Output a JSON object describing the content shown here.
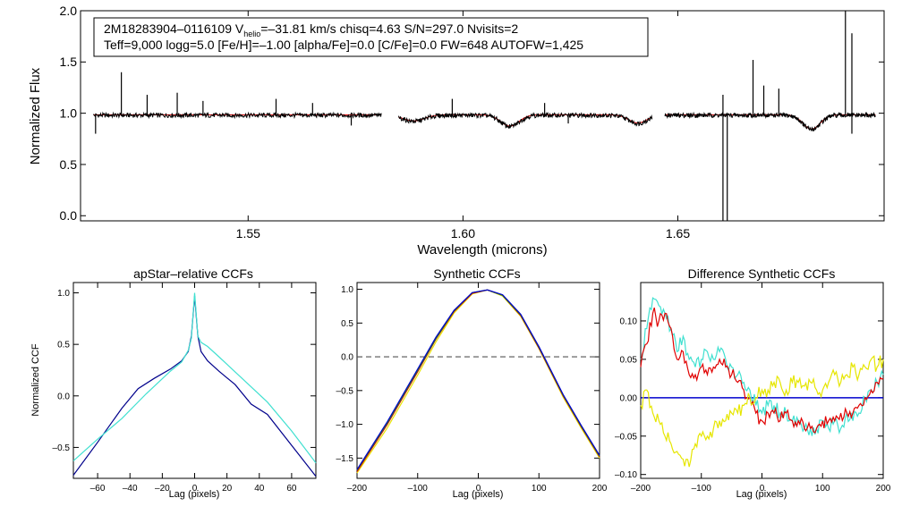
{
  "figure": {
    "info_line1_prefix": "2M18283904–0116109  V",
    "info_line1_sub": "helio",
    "info_line1_suffix": "=–31.81 km/s  chisq=4.63  S/N=297.0  Nvisits=2",
    "info_line2": "Teff=9,000 logg=5.0 [Fe/H]=–1.00 [alpha/Fe]=0.0 [C/Fe]=0.0 FW=648 AUTOFW=1,425"
  },
  "colors": {
    "observed": "#000000",
    "model": "#e00000",
    "ccf_dark": "#00008b",
    "ccf_cyan": "#40e0d0",
    "ccf_red": "#e00000",
    "ccf_yellow": "#e6e600",
    "ccf_blue": "#0000cd",
    "ccf_green": "#228b22",
    "zero_line_dash": "#555555",
    "zero_line_blue": "#0000cd"
  },
  "chart_data": [
    {
      "id": "spectrum",
      "type": "line",
      "title": "",
      "xlabel": "Wavelength (microns)",
      "ylabel": "Normalized Flux",
      "xlim": [
        1.511,
        1.698
      ],
      "ylim": [
        -0.05,
        2.0
      ],
      "xticks": [
        {
          "v": 1.55,
          "label": "1.55"
        },
        {
          "v": 1.6,
          "label": "1.60"
        },
        {
          "v": 1.65,
          "label": "1.65"
        }
      ],
      "yticks": [
        {
          "v": 0.0,
          "label": "0.0"
        },
        {
          "v": 0.5,
          "label": "0.5"
        },
        {
          "v": 1.0,
          "label": "1.0"
        },
        {
          "v": 1.5,
          "label": "1.5"
        },
        {
          "v": 2.0,
          "label": "2.0"
        }
      ],
      "chips": [
        [
          1.514,
          1.581
        ],
        [
          1.585,
          1.644
        ],
        [
          1.647,
          1.696
        ]
      ],
      "continuum": 0.98,
      "broad_lines": [
        {
          "center": 1.5885,
          "depth": 0.06,
          "width": 0.0035
        },
        {
          "center": 1.6109,
          "depth": 0.11,
          "width": 0.003
        },
        {
          "center": 1.6407,
          "depth": 0.08,
          "width": 0.003
        },
        {
          "center": 1.6811,
          "depth": 0.14,
          "width": 0.0028
        }
      ],
      "emission_spikes": [
        {
          "x": 1.5205,
          "y": 1.4
        },
        {
          "x": 1.5265,
          "y": 1.18
        },
        {
          "x": 1.5335,
          "y": 1.2
        },
        {
          "x": 1.5395,
          "y": 1.12
        },
        {
          "x": 1.5565,
          "y": 1.14
        },
        {
          "x": 1.565,
          "y": 1.1
        },
        {
          "x": 1.5975,
          "y": 1.14
        },
        {
          "x": 1.619,
          "y": 1.1
        },
        {
          "x": 1.6605,
          "y": 1.18
        },
        {
          "x": 1.6675,
          "y": 1.52
        },
        {
          "x": 1.67,
          "y": 1.27
        },
        {
          "x": 1.6735,
          "y": 1.24
        },
        {
          "x": 1.689,
          "y": 2.0
        },
        {
          "x": 1.6905,
          "y": 1.78
        }
      ],
      "absorption_spikes": [
        {
          "x": 1.5145,
          "y": 0.8
        },
        {
          "x": 1.574,
          "y": 0.88
        },
        {
          "x": 1.6245,
          "y": 0.9
        },
        {
          "x": 1.6605,
          "y": -0.05
        },
        {
          "x": 1.6615,
          "y": -0.05
        },
        {
          "x": 1.6905,
          "y": 0.8
        }
      ]
    },
    {
      "id": "apstar_ccf",
      "type": "line",
      "title": "apStar–relative CCFs",
      "xlabel": "Lag (pixels)",
      "ylabel": "Normalized CCF",
      "xlim": [
        -75,
        75
      ],
      "ylim": [
        -0.8,
        1.1
      ],
      "xticks": [
        {
          "v": -60,
          "label": "–60"
        },
        {
          "v": -40,
          "label": "–40"
        },
        {
          "v": -20,
          "label": "–20"
        },
        {
          "v": 0,
          "label": "0"
        },
        {
          "v": 20,
          "label": "20"
        },
        {
          "v": 40,
          "label": "40"
        },
        {
          "v": 60,
          "label": "60"
        }
      ],
      "yticks": [
        {
          "v": -0.5,
          "label": "–0.5"
        },
        {
          "v": 0.0,
          "label": "0.0"
        },
        {
          "v": 0.5,
          "label": "0.5"
        },
        {
          "v": 1.0,
          "label": "1.0"
        }
      ],
      "series": [
        {
          "name": "visit 1",
          "color": "#00008b",
          "x": [
            -75,
            -60,
            -45,
            -35,
            -25,
            -15,
            -8,
            -4,
            -2,
            0,
            2,
            4,
            8,
            15,
            25,
            35,
            45,
            60,
            75
          ],
          "y": [
            -0.77,
            -0.45,
            -0.12,
            0.07,
            0.17,
            0.26,
            0.34,
            0.43,
            0.58,
            0.97,
            0.58,
            0.43,
            0.34,
            0.24,
            0.11,
            -0.08,
            -0.18,
            -0.48,
            -0.78
          ]
        },
        {
          "name": "visit 2",
          "color": "#40e0d0",
          "x": [
            -75,
            -60,
            -45,
            -30,
            -15,
            -8,
            -4,
            -2,
            0,
            2,
            4,
            8,
            15,
            30,
            45,
            60,
            75
          ],
          "y": [
            -0.63,
            -0.42,
            -0.22,
            0.02,
            0.24,
            0.33,
            0.44,
            0.56,
            1.0,
            0.58,
            0.52,
            0.48,
            0.38,
            0.16,
            -0.06,
            -0.34,
            -0.65
          ]
        }
      ]
    },
    {
      "id": "synthetic_ccf",
      "type": "line",
      "title": "Synthetic CCFs",
      "xlabel": "Lag (pixels)",
      "ylabel": "",
      "xlim": [
        -200,
        200
      ],
      "ylim": [
        -1.8,
        1.1
      ],
      "zero_line": true,
      "xticks": [
        {
          "v": -200,
          "label": "–200"
        },
        {
          "v": -100,
          "label": "–100"
        },
        {
          "v": 0,
          "label": "0"
        },
        {
          "v": 100,
          "label": "100"
        },
        {
          "v": 200,
          "label": "200"
        }
      ],
      "yticks": [
        {
          "v": -1.5,
          "label": "–1.5"
        },
        {
          "v": -1.0,
          "label": "–1.0"
        },
        {
          "v": -0.5,
          "label": "–0.5"
        },
        {
          "v": 0.0,
          "label": "0.0"
        },
        {
          "v": 0.5,
          "label": "0.5"
        },
        {
          "v": 1.0,
          "label": "1.0"
        }
      ],
      "series": [
        {
          "name": "s1",
          "color": "#e6e600",
          "x": [
            -200,
            -150,
            -100,
            -70,
            -40,
            -10,
            15,
            40,
            70,
            100,
            140,
            170,
            200
          ],
          "y": [
            -1.72,
            -1.05,
            -0.27,
            0.22,
            0.65,
            0.93,
            0.99,
            0.9,
            0.6,
            0.12,
            -0.6,
            -1.06,
            -1.5
          ]
        },
        {
          "name": "s2",
          "color": "#e00000",
          "x": [
            -200,
            -150,
            -100,
            -70,
            -40,
            -10,
            15,
            40,
            70,
            100,
            140,
            170,
            200
          ],
          "y": [
            -1.7,
            -1.0,
            -0.22,
            0.26,
            0.67,
            0.94,
            0.99,
            0.91,
            0.61,
            0.13,
            -0.58,
            -1.04,
            -1.48
          ]
        },
        {
          "name": "s3",
          "color": "#228b22",
          "x": [
            -200,
            -150,
            -100,
            -70,
            -40,
            -10,
            15,
            40,
            70,
            100,
            140,
            170,
            200
          ],
          "y": [
            -1.68,
            -0.98,
            -0.2,
            0.27,
            0.68,
            0.95,
            0.99,
            0.91,
            0.62,
            0.14,
            -0.57,
            -1.03,
            -1.47
          ]
        },
        {
          "name": "s4",
          "color": "#0000cd",
          "x": [
            -200,
            -150,
            -100,
            -70,
            -40,
            -10,
            15,
            40,
            70,
            100,
            140,
            170,
            200
          ],
          "y": [
            -1.67,
            -0.96,
            -0.18,
            0.29,
            0.69,
            0.95,
            0.99,
            0.92,
            0.63,
            0.15,
            -0.56,
            -1.02,
            -1.46
          ]
        }
      ]
    },
    {
      "id": "difference_ccf",
      "type": "line",
      "title": "Difference Synthetic CCFs",
      "xlabel": "Lag (pixels)",
      "ylabel": "",
      "xlim": [
        -200,
        200
      ],
      "ylim": [
        -0.105,
        0.15
      ],
      "zero_line": true,
      "xticks": [
        {
          "v": -200,
          "label": "–200"
        },
        {
          "v": -100,
          "label": "–100"
        },
        {
          "v": 0,
          "label": "0"
        },
        {
          "v": 100,
          "label": "100"
        },
        {
          "v": 200,
          "label": "200"
        }
      ],
      "yticks": [
        {
          "v": -0.1,
          "label": "–0.10"
        },
        {
          "v": -0.05,
          "label": "–0.05"
        },
        {
          "v": 0.0,
          "label": "0.00"
        },
        {
          "v": 0.05,
          "label": "0.05"
        },
        {
          "v": 0.1,
          "label": "0.10"
        }
      ],
      "series": [
        {
          "name": "cyan",
          "color": "#40e0d0",
          "x": [
            -200,
            -190,
            -180,
            -170,
            -160,
            -150,
            -140,
            -130,
            -120,
            -110,
            -100,
            -90,
            -80,
            -70,
            -60,
            -50,
            -40,
            -30,
            -20,
            -10,
            0,
            10,
            20,
            30,
            40,
            50,
            60,
            70,
            80,
            90,
            100,
            110,
            120,
            130,
            140,
            150,
            160,
            170,
            180,
            190,
            200
          ],
          "y": [
            0.05,
            0.09,
            0.13,
            0.12,
            0.11,
            0.09,
            0.06,
            0.08,
            0.05,
            0.04,
            0.05,
            0.06,
            0.05,
            0.06,
            0.05,
            0.04,
            0.03,
            0.02,
            0.01,
            -0.01,
            -0.02,
            -0.01,
            -0.01,
            -0.02,
            -0.02,
            -0.03,
            -0.03,
            -0.04,
            -0.04,
            -0.04,
            -0.03,
            -0.04,
            -0.03,
            -0.04,
            -0.02,
            -0.03,
            -0.02,
            0.0,
            0.01,
            0.02,
            0.03
          ]
        },
        {
          "name": "red",
          "color": "#e00000",
          "x": [
            -200,
            -190,
            -180,
            -170,
            -160,
            -150,
            -140,
            -130,
            -120,
            -110,
            -100,
            -90,
            -80,
            -70,
            -60,
            -50,
            -40,
            -30,
            -20,
            -10,
            0,
            10,
            20,
            30,
            40,
            50,
            60,
            70,
            80,
            90,
            100,
            110,
            120,
            130,
            140,
            150,
            160,
            170,
            180,
            190,
            200
          ],
          "y": [
            0.04,
            0.07,
            0.11,
            0.1,
            0.11,
            0.09,
            0.05,
            0.06,
            0.03,
            0.03,
            0.04,
            0.03,
            0.04,
            0.05,
            0.04,
            0.03,
            0.02,
            0.01,
            0.0,
            -0.02,
            -0.03,
            -0.02,
            -0.02,
            -0.03,
            -0.02,
            -0.03,
            -0.03,
            -0.04,
            -0.04,
            -0.04,
            -0.03,
            -0.03,
            -0.03,
            -0.02,
            -0.02,
            -0.02,
            -0.01,
            0.0,
            0.01,
            0.02,
            0.025
          ]
        },
        {
          "name": "yellow",
          "color": "#e6e600",
          "x": [
            -200,
            -190,
            -180,
            -170,
            -160,
            -150,
            -140,
            -130,
            -120,
            -110,
            -100,
            -90,
            -80,
            -70,
            -60,
            -50,
            -40,
            -30,
            -20,
            -10,
            0,
            10,
            20,
            30,
            40,
            50,
            60,
            70,
            80,
            90,
            100,
            110,
            120,
            130,
            140,
            150,
            160,
            170,
            180,
            190,
            200
          ],
          "y": [
            -0.01,
            0.01,
            -0.02,
            -0.03,
            -0.05,
            -0.06,
            -0.07,
            -0.08,
            -0.09,
            -0.06,
            -0.05,
            -0.05,
            -0.04,
            -0.03,
            -0.03,
            -0.02,
            -0.02,
            -0.01,
            0.0,
            0.0,
            0.01,
            0.01,
            0.02,
            0.02,
            0.01,
            0.02,
            0.02,
            0.015,
            0.02,
            0.01,
            0.01,
            0.02,
            0.03,
            0.02,
            0.03,
            0.04,
            0.03,
            0.04,
            0.05,
            0.04,
            0.05
          ]
        }
      ]
    }
  ]
}
